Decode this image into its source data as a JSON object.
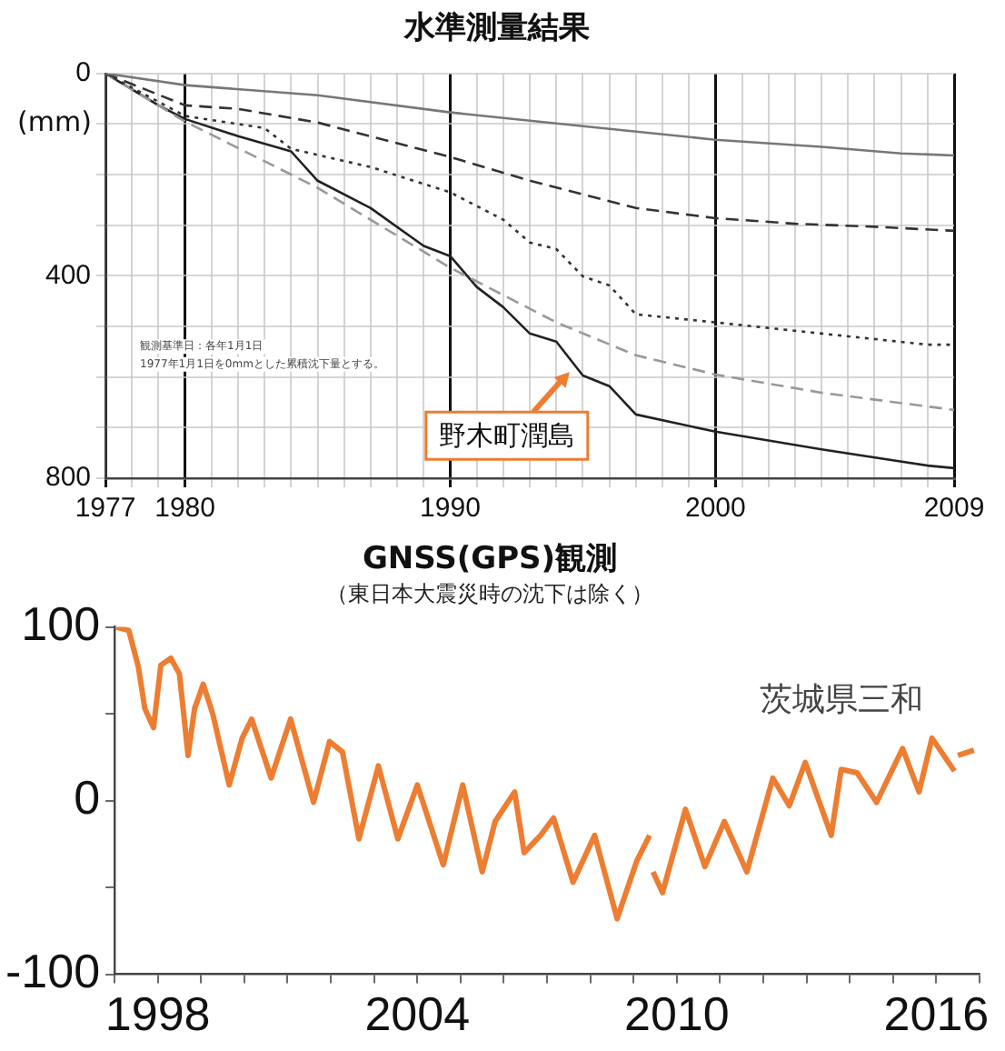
{
  "chart_data": [
    {
      "type": "line",
      "title": "水準測量結果",
      "ylabel": "(mm)",
      "xlim": [
        1977,
        2009
      ],
      "ylim": [
        800,
        0
      ],
      "xticks": [
        1977,
        {
          "value": 1978,
          "label": null
        },
        {
          "value": 1979,
          "label": null
        },
        1980,
        {
          "value": 1981,
          "label": null
        },
        {
          "value": 1982,
          "label": null
        },
        {
          "value": 1983,
          "label": null
        },
        {
          "value": 1984,
          "label": null
        },
        {
          "value": 1985,
          "label": null
        },
        {
          "value": 1986,
          "label": null
        },
        {
          "value": 1987,
          "label": null
        },
        {
          "value": 1988,
          "label": null
        },
        {
          "value": 1989,
          "label": null
        },
        1990,
        {
          "value": 1991,
          "label": null
        },
        {
          "value": 1992,
          "label": null
        },
        {
          "value": 1993,
          "label": null
        },
        {
          "value": 1994,
          "label": null
        },
        {
          "value": 1995,
          "label": null
        },
        {
          "value": 1996,
          "label": null
        },
        {
          "value": 1997,
          "label": null
        },
        {
          "value": 1998,
          "label": null
        },
        {
          "value": 1999,
          "label": null
        },
        2000,
        {
          "value": 2001,
          "label": null
        },
        {
          "value": 2002,
          "label": null
        },
        {
          "value": 2003,
          "label": null
        },
        {
          "value": 2004,
          "label": null
        },
        {
          "value": 2005,
          "label": null
        },
        {
          "value": 2006,
          "label": null
        },
        {
          "value": 2007,
          "label": null
        },
        {
          "value": 2008,
          "label": null
        },
        2009
      ],
      "yticks": [
        0,
        {
          "value": 100,
          "label": null
        },
        {
          "value": 200,
          "label": null
        },
        {
          "value": 300,
          "label": null
        },
        400,
        {
          "value": 500,
          "label": null
        },
        {
          "value": 600,
          "label": null
        },
        {
          "value": 700,
          "label": null
        },
        800
      ],
      "grid": true,
      "legend": false,
      "marker": "none",
      "series": [
        {
          "color": "#777777",
          "line_style": "solid",
          "x": [
            1977,
            1980,
            1985,
            1990,
            1995,
            2000,
            2004,
            2007,
            2009
          ],
          "values": [
            0,
            23,
            43,
            77,
            104,
            131,
            145,
            158,
            162
          ]
        },
        {
          "color": "#333333",
          "line_style": "dashed",
          "x": [
            1977,
            1980,
            1982,
            1985,
            1990,
            1993,
            1995,
            1997,
            2000,
            2003,
            2006,
            2009
          ],
          "values": [
            0,
            63,
            70,
            97,
            165,
            212,
            239,
            266,
            286,
            297,
            303,
            311
          ]
        },
        {
          "color": "#333333",
          "line_style": "dotted",
          "x": [
            1977,
            1980,
            1983,
            1984,
            1987,
            1990,
            1992,
            1993,
            1994,
            1995,
            1996,
            1997,
            2000,
            2004,
            2008,
            2009
          ],
          "values": [
            0,
            84,
            108,
            149,
            185,
            235,
            289,
            334,
            347,
            401,
            419,
            476,
            492,
            514,
            536,
            536
          ]
        },
        {
          "color": "#999999",
          "line_style": "dashed",
          "x": [
            1977,
            1980,
            1985,
            1990,
            1994,
            1997,
            2000,
            2004,
            2009
          ],
          "values": [
            0,
            95,
            226,
            384,
            492,
            557,
            595,
            631,
            665
          ]
        },
        {
          "color": "#222222",
          "line_style": "solid",
          "x": [
            1977,
            1979,
            1980,
            1982,
            1984,
            1985,
            1987,
            1989,
            1990,
            1991,
            1992,
            1993,
            1994,
            1995,
            1996,
            1997,
            2000,
            2004,
            2008,
            2009
          ],
          "values": [
            0,
            63,
            90,
            124,
            154,
            212,
            266,
            341,
            361,
            422,
            462,
            514,
            530,
            597,
            618,
            674,
            708,
            743,
            775,
            780
          ]
        }
      ],
      "annotations": [
        "観測基準日：各年1月1日",
        "1977年1月1日を0mmとした累積沈下量とする。",
        {
          "text": "野木町潤島",
          "x": 1994.5,
          "y": 590
        }
      ]
    },
    {
      "type": "line",
      "title": "GNSS(GPS)観測",
      "subtitle": "（東日本大震災時の沈下は除く）",
      "xlim": [
        1997,
        2017
      ],
      "ylim": [
        -100,
        100
      ],
      "xticks": [
        {
          "value": 1997,
          "label": null
        },
        1998,
        {
          "value": 1999,
          "label": null
        },
        {
          "value": 2000,
          "label": null
        },
        {
          "value": 2001,
          "label": null
        },
        {
          "value": 2002,
          "label": null
        },
        {
          "value": 2003,
          "label": null
        },
        2004,
        {
          "value": 2005,
          "label": null
        },
        {
          "value": 2006,
          "label": null
        },
        {
          "value": 2007,
          "label": null
        },
        {
          "value": 2008,
          "label": null
        },
        {
          "value": 2009,
          "label": null
        },
        2010,
        {
          "value": 2011,
          "label": null
        },
        {
          "value": 2012,
          "label": null
        },
        {
          "value": 2013,
          "label": null
        },
        {
          "value": 2014,
          "label": null
        },
        {
          "value": 2015,
          "label": null
        },
        2016,
        {
          "value": 2017,
          "label": null
        }
      ],
      "yticks": [
        -100,
        {
          "value": -50,
          "label": null
        },
        0,
        {
          "value": 50,
          "label": null
        },
        100
      ],
      "grid": false,
      "legend": false,
      "marker": "none",
      "series": [
        {
          "color": "#ed7d31",
          "line_style": "solid",
          "x": [
            1997.03,
            1997.33,
            1997.55,
            1997.7,
            1997.9,
            1998.07,
            1998.3,
            1998.5,
            1998.7,
            1998.85,
            1999.05,
            1999.27,
            1999.65,
            1999.95,
            2000.17,
            2000.62,
            2001.07,
            2001.6,
            2001.97,
            2002.27,
            2002.65,
            2003.1,
            2003.55,
            2004.0,
            2004.6,
            2005.05,
            2005.5,
            2005.8,
            2006.25,
            2006.47,
            2006.85,
            2007.15,
            2007.6,
            2008.1,
            2008.62,
            2009.07,
            2009.37,
            2009.41,
            2009.45,
            2009.67,
            2010.2,
            2010.65,
            2011.1,
            2011.62,
            2012.22,
            2012.6,
            2012.97,
            2013.57,
            2013.8,
            2014.17,
            2014.62,
            2015.22,
            2015.6,
            2015.9,
            2016.42,
            2016.46,
            2016.5,
            2016.87
          ],
          "values": [
            100,
            98,
            77,
            53,
            42,
            78,
            82,
            73,
            26,
            53,
            67,
            50,
            9,
            36,
            47,
            13,
            47,
            -1,
            34,
            28,
            -22,
            20,
            -22,
            9,
            -37,
            9,
            -41,
            -12,
            5,
            -30,
            -20,
            -10,
            -47,
            -20,
            -68,
            -35,
            -20,
            null,
            -41,
            -53,
            -5,
            -38,
            -12,
            -41,
            13,
            -3,
            22,
            -20,
            18,
            16,
            -1,
            30,
            5,
            36,
            17,
            null,
            26,
            29
          ]
        }
      ],
      "annotations": [
        "茨城県三和"
      ]
    }
  ]
}
